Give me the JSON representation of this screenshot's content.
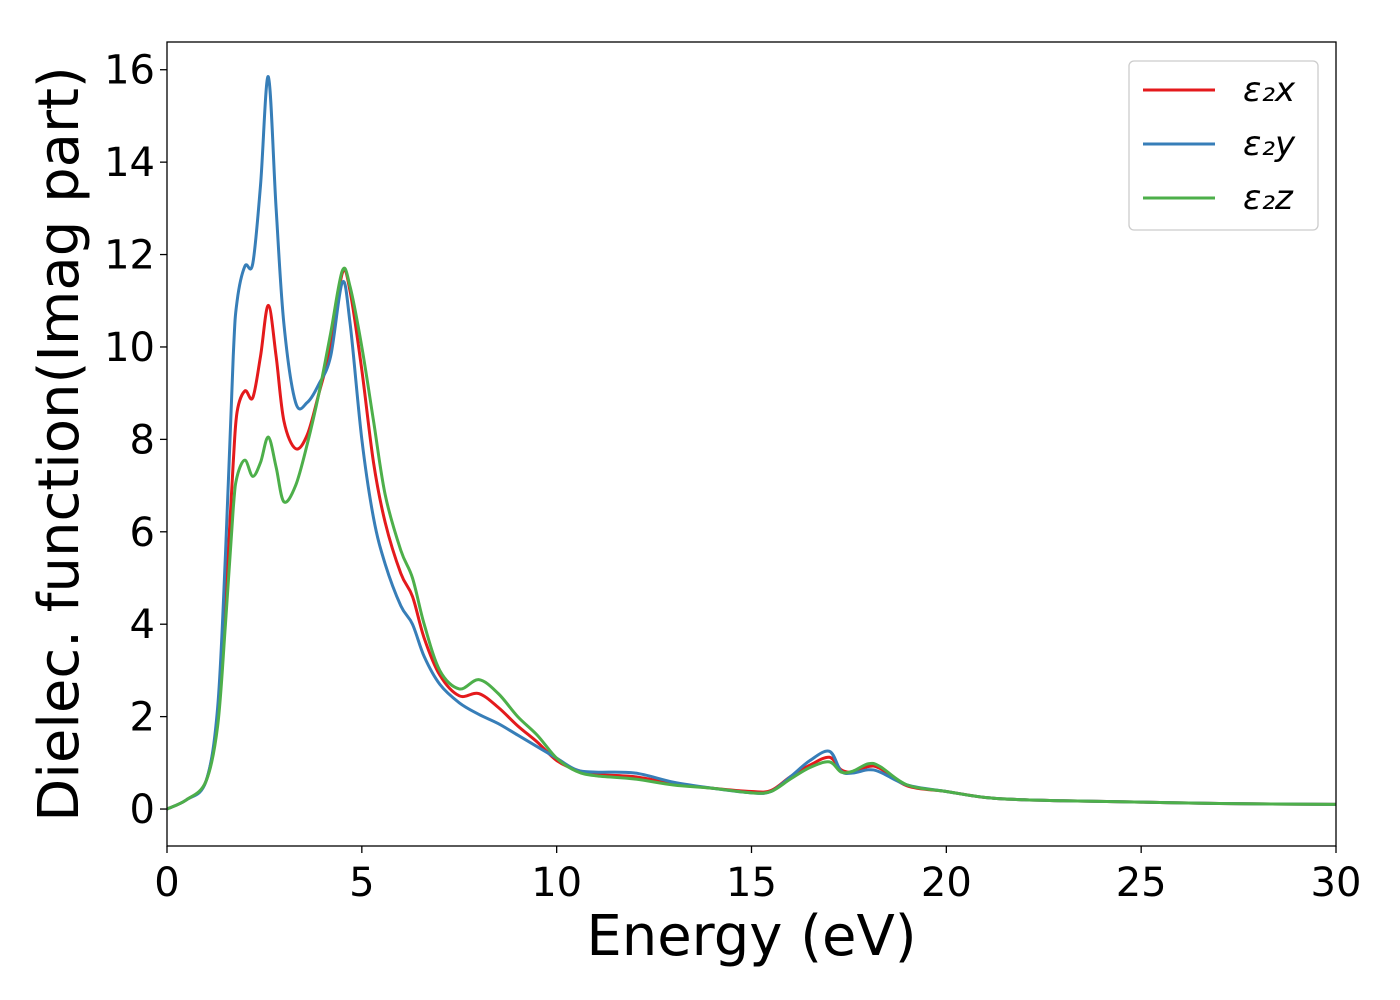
{
  "chart_data": {
    "type": "line",
    "title": "",
    "xlabel": "Energy (eV)",
    "ylabel": "Dielec. function(Imag part)",
    "xlim": [
      0,
      30
    ],
    "ylim": [
      -0.8,
      16.6
    ],
    "xticks": [
      0,
      5,
      10,
      15,
      20,
      25,
      30
    ],
    "yticks": [
      0,
      2,
      4,
      6,
      8,
      10,
      12,
      14,
      16
    ],
    "xtick_labels": [
      "0",
      "5",
      "10",
      "15",
      "20",
      "25",
      "30"
    ],
    "ytick_labels": [
      "0",
      "2",
      "4",
      "6",
      "8",
      "10",
      "12",
      "14",
      "16"
    ],
    "grid": false,
    "legend_position": "top-right",
    "series": [
      {
        "name": "ε₂x",
        "color": "#e41a1c",
        "x": [
          0,
          0.5,
          1.0,
          1.3,
          1.5,
          1.7,
          1.8,
          2.0,
          2.2,
          2.4,
          2.6,
          2.8,
          3.0,
          3.3,
          3.6,
          3.9,
          4.2,
          4.5,
          4.7,
          5.0,
          5.3,
          5.6,
          6.0,
          6.3,
          6.6,
          7.0,
          7.5,
          8.0,
          8.5,
          9.0,
          9.5,
          10.0,
          10.5,
          11.0,
          12.0,
          13.0,
          14.0,
          15.0,
          15.5,
          16.0,
          16.5,
          17.0,
          17.3,
          17.6,
          18.0,
          18.3,
          19.0,
          20.0,
          21.0,
          22.0,
          23.0,
          25.0,
          27.0,
          30.0
        ],
        "y": [
          0,
          0.2,
          0.6,
          2.0,
          4.5,
          7.5,
          8.6,
          9.05,
          8.9,
          9.8,
          10.9,
          9.8,
          8.4,
          7.8,
          8.1,
          9.0,
          10.0,
          11.6,
          11.2,
          9.5,
          7.5,
          6.2,
          5.1,
          4.6,
          3.7,
          2.9,
          2.45,
          2.5,
          2.2,
          1.8,
          1.45,
          1.05,
          0.85,
          0.75,
          0.7,
          0.55,
          0.45,
          0.38,
          0.4,
          0.7,
          0.95,
          1.12,
          0.85,
          0.8,
          0.92,
          0.88,
          0.5,
          0.38,
          0.25,
          0.2,
          0.18,
          0.15,
          0.12,
          0.1
        ]
      },
      {
        "name": "ε₂y",
        "color": "#377eb8",
        "x": [
          0,
          0.5,
          1.0,
          1.3,
          1.5,
          1.7,
          1.8,
          2.0,
          2.2,
          2.4,
          2.6,
          2.8,
          3.0,
          3.3,
          3.6,
          3.9,
          4.2,
          4.5,
          4.7,
          5.0,
          5.3,
          5.6,
          6.0,
          6.3,
          6.6,
          7.0,
          7.5,
          8.0,
          8.5,
          9.0,
          9.5,
          10.0,
          10.5,
          11.0,
          12.0,
          13.0,
          14.0,
          15.0,
          15.5,
          16.0,
          16.5,
          17.0,
          17.3,
          17.6,
          18.0,
          18.3,
          19.0,
          20.0,
          21.0,
          22.0,
          23.0,
          25.0,
          27.0,
          30.0
        ],
        "y": [
          0,
          0.2,
          0.6,
          2.2,
          5.5,
          9.8,
          11.0,
          11.75,
          11.8,
          13.5,
          15.85,
          13.0,
          10.5,
          8.8,
          8.8,
          9.2,
          9.8,
          11.4,
          10.5,
          8.0,
          6.3,
          5.3,
          4.4,
          4.0,
          3.3,
          2.7,
          2.3,
          2.05,
          1.85,
          1.6,
          1.35,
          1.1,
          0.85,
          0.8,
          0.78,
          0.58,
          0.45,
          0.35,
          0.38,
          0.7,
          1.05,
          1.25,
          0.82,
          0.78,
          0.85,
          0.8,
          0.52,
          0.38,
          0.25,
          0.2,
          0.18,
          0.15,
          0.12,
          0.1
        ]
      },
      {
        "name": "ε₂z",
        "color": "#4daf4a",
        "x": [
          0,
          0.5,
          1.0,
          1.3,
          1.5,
          1.7,
          1.8,
          2.0,
          2.2,
          2.4,
          2.6,
          2.8,
          3.0,
          3.3,
          3.6,
          3.9,
          4.2,
          4.5,
          4.7,
          5.0,
          5.3,
          5.6,
          6.0,
          6.3,
          6.6,
          7.0,
          7.5,
          8.0,
          8.5,
          9.0,
          9.5,
          10.0,
          10.5,
          11.0,
          12.0,
          13.0,
          14.0,
          15.0,
          15.5,
          16.0,
          16.5,
          17.0,
          17.3,
          17.6,
          18.0,
          18.3,
          19.0,
          20.0,
          21.0,
          22.0,
          23.0,
          25.0,
          27.0,
          30.0
        ],
        "y": [
          0,
          0.2,
          0.6,
          1.8,
          4.0,
          6.5,
          7.2,
          7.55,
          7.2,
          7.5,
          8.05,
          7.4,
          6.65,
          7.0,
          7.9,
          9.0,
          10.3,
          11.65,
          11.3,
          10.0,
          8.4,
          6.8,
          5.6,
          5.0,
          4.0,
          3.0,
          2.6,
          2.8,
          2.5,
          2.0,
          1.6,
          1.1,
          0.82,
          0.72,
          0.65,
          0.52,
          0.45,
          0.35,
          0.38,
          0.65,
          0.9,
          1.02,
          0.8,
          0.82,
          0.98,
          0.92,
          0.52,
          0.38,
          0.25,
          0.2,
          0.18,
          0.15,
          0.12,
          0.1
        ]
      }
    ]
  }
}
